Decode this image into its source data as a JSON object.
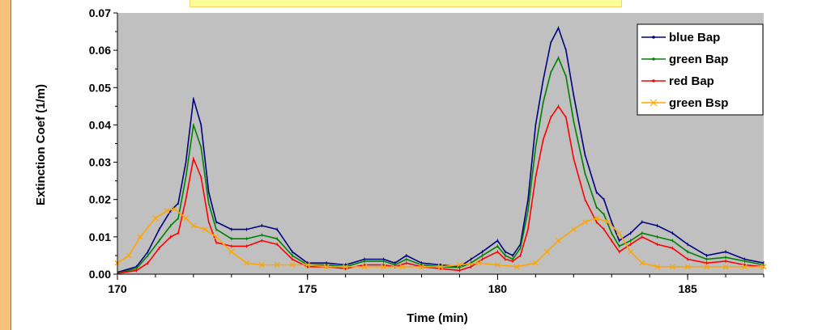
{
  "chart_data": {
    "type": "line",
    "title": "",
    "xlabel": "Time (min)",
    "ylabel": "Extinction Coef (1/m)",
    "xlim": [
      170,
      187
    ],
    "ylim": [
      0,
      0.07
    ],
    "x_ticks": [
      170,
      175,
      180,
      185
    ],
    "x_tick_labels": [
      "170",
      "175",
      "180",
      "185"
    ],
    "y_ticks": [
      0,
      0.01,
      0.02,
      0.03,
      0.04,
      0.05,
      0.06,
      0.07
    ],
    "y_tick_labels": [
      "0.00",
      "0.01",
      "0.02",
      "0.03",
      "0.04",
      "0.05",
      "0.06",
      "0.07"
    ],
    "grid": false,
    "plot_background": "#c0c0c0",
    "legend_position": "top-right",
    "series": [
      {
        "name": "blue Bap",
        "color": "#000080",
        "marker": "tick",
        "x": [
          170,
          170.5,
          170.8,
          171.1,
          171.4,
          171.6,
          171.8,
          172,
          172.2,
          172.4,
          172.6,
          173,
          173.4,
          173.8,
          174.2,
          174.6,
          175,
          175.5,
          176,
          176.5,
          177,
          177.3,
          177.6,
          178,
          178.5,
          179,
          179.3,
          179.6,
          180,
          180.2,
          180.4,
          180.6,
          180.8,
          181,
          181.2,
          181.4,
          181.6,
          181.8,
          182,
          182.3,
          182.6,
          182.8,
          183,
          183.2,
          183.5,
          183.8,
          184.2,
          184.6,
          185,
          185.5,
          186,
          186.5,
          187
        ],
        "y": [
          0.0005,
          0.002,
          0.006,
          0.012,
          0.017,
          0.019,
          0.03,
          0.047,
          0.04,
          0.022,
          0.014,
          0.012,
          0.012,
          0.013,
          0.012,
          0.006,
          0.003,
          0.003,
          0.0025,
          0.004,
          0.004,
          0.003,
          0.005,
          0.003,
          0.0025,
          0.002,
          0.004,
          0.006,
          0.009,
          0.006,
          0.005,
          0.008,
          0.02,
          0.04,
          0.052,
          0.062,
          0.066,
          0.06,
          0.048,
          0.032,
          0.022,
          0.02,
          0.014,
          0.009,
          0.011,
          0.014,
          0.013,
          0.011,
          0.008,
          0.005,
          0.006,
          0.004,
          0.003
        ]
      },
      {
        "name": "green Bap",
        "color": "#008000",
        "marker": "tick",
        "x": [
          170,
          170.5,
          170.8,
          171.1,
          171.4,
          171.6,
          171.8,
          172,
          172.2,
          172.4,
          172.6,
          173,
          173.4,
          173.8,
          174.2,
          174.6,
          175,
          175.5,
          176,
          176.5,
          177,
          177.3,
          177.6,
          178,
          178.5,
          179,
          179.3,
          179.6,
          180,
          180.2,
          180.4,
          180.6,
          180.8,
          181,
          181.2,
          181.4,
          181.6,
          181.8,
          182,
          182.3,
          182.6,
          182.8,
          183,
          183.2,
          183.5,
          183.8,
          184.2,
          184.6,
          185,
          185.5,
          186,
          186.5,
          187
        ],
        "y": [
          0.0003,
          0.0015,
          0.005,
          0.009,
          0.013,
          0.015,
          0.026,
          0.04,
          0.034,
          0.019,
          0.012,
          0.0095,
          0.0095,
          0.0105,
          0.0095,
          0.005,
          0.0025,
          0.0025,
          0.002,
          0.0035,
          0.0035,
          0.0025,
          0.004,
          0.0025,
          0.002,
          0.0018,
          0.003,
          0.005,
          0.0075,
          0.005,
          0.004,
          0.007,
          0.017,
          0.034,
          0.046,
          0.054,
          0.058,
          0.053,
          0.041,
          0.027,
          0.018,
          0.016,
          0.011,
          0.0075,
          0.009,
          0.011,
          0.01,
          0.009,
          0.006,
          0.004,
          0.0045,
          0.0035,
          0.0025
        ]
      },
      {
        "name": "red Bap",
        "color": "#ff0000",
        "marker": "tick",
        "x": [
          170,
          170.5,
          170.8,
          171.1,
          171.4,
          171.6,
          171.8,
          172,
          172.2,
          172.4,
          172.6,
          173,
          173.4,
          173.8,
          174.2,
          174.6,
          175,
          175.5,
          176,
          176.5,
          177,
          177.3,
          177.6,
          178,
          178.5,
          179,
          179.3,
          179.6,
          180,
          180.2,
          180.4,
          180.6,
          180.8,
          181,
          181.2,
          181.4,
          181.6,
          181.8,
          182,
          182.3,
          182.6,
          182.8,
          183,
          183.2,
          183.5,
          183.8,
          184.2,
          184.6,
          185,
          185.5,
          186,
          186.5,
          187
        ],
        "y": [
          0.0002,
          0.001,
          0.003,
          0.007,
          0.01,
          0.011,
          0.02,
          0.031,
          0.026,
          0.014,
          0.0085,
          0.0075,
          0.0075,
          0.009,
          0.008,
          0.004,
          0.002,
          0.002,
          0.0015,
          0.0025,
          0.0025,
          0.002,
          0.003,
          0.002,
          0.0015,
          0.001,
          0.002,
          0.004,
          0.006,
          0.004,
          0.0035,
          0.005,
          0.012,
          0.026,
          0.036,
          0.042,
          0.045,
          0.042,
          0.031,
          0.02,
          0.014,
          0.012,
          0.009,
          0.006,
          0.008,
          0.01,
          0.008,
          0.007,
          0.004,
          0.003,
          0.0035,
          0.0025,
          0.002
        ]
      },
      {
        "name": "green Bsp",
        "color": "#ffa500",
        "marker": "x",
        "x": [
          170,
          170.3,
          170.6,
          171,
          171.3,
          171.5,
          171.8,
          172,
          172.3,
          172.6,
          173,
          173.4,
          173.8,
          174.2,
          174.6,
          175,
          175.5,
          176,
          176.5,
          177,
          177.5,
          178,
          178.5,
          179,
          179.5,
          180,
          180.5,
          181,
          181.3,
          181.6,
          182,
          182.3,
          182.6,
          182.9,
          183.2,
          183.5,
          183.8,
          184.2,
          184.6,
          185,
          185.5,
          186,
          186.5,
          187
        ],
        "y": [
          0.003,
          0.005,
          0.01,
          0.015,
          0.017,
          0.0175,
          0.015,
          0.013,
          0.012,
          0.01,
          0.006,
          0.003,
          0.0025,
          0.0025,
          0.0025,
          0.0025,
          0.002,
          0.002,
          0.002,
          0.002,
          0.002,
          0.002,
          0.002,
          0.0025,
          0.003,
          0.0025,
          0.002,
          0.003,
          0.006,
          0.009,
          0.012,
          0.014,
          0.015,
          0.014,
          0.011,
          0.006,
          0.003,
          0.002,
          0.002,
          0.002,
          0.002,
          0.002,
          0.002,
          0.002
        ]
      }
    ]
  }
}
